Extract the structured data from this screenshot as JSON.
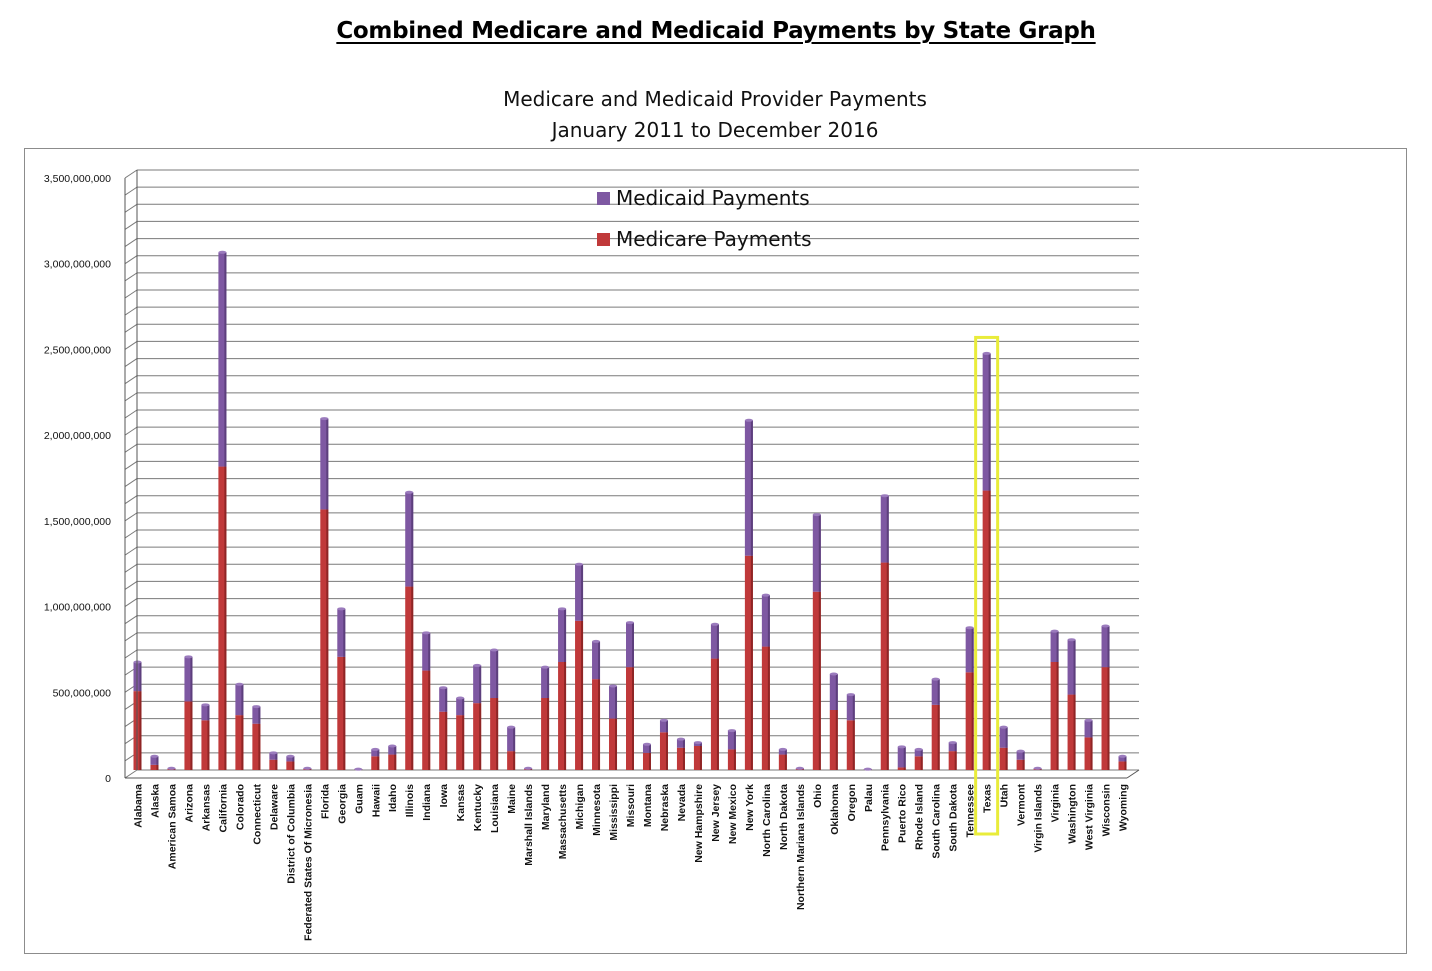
{
  "page": {
    "heading": "Combined Medicare and Medicaid Payments by State Graph"
  },
  "colors": {
    "medicare": "#c0393a",
    "medicaid": "#7e58a2",
    "highlight": "#e9ec3a",
    "gridline": "#7a7a7a"
  },
  "chart_data": {
    "type": "bar",
    "stacked": true,
    "title": "Medicare and Medicaid Provider Payments",
    "subtitle": "January 2011 to December 2016",
    "xlabel": "",
    "ylabel": "",
    "ylim": [
      0,
      3500000000
    ],
    "grid": true,
    "legend_position": "top-center",
    "yticks": [
      0,
      500000000,
      1000000000,
      1500000000,
      2000000000,
      2500000000,
      3000000000,
      3500000000
    ],
    "ytick_labels": [
      "0",
      "500,000,000",
      "1,000,000,000",
      "1,500,000,000",
      "2,000,000,000",
      "2,500,000,000",
      "3,000,000,000",
      "3,500,000,000"
    ],
    "highlighted_category": "Texas",
    "categories": [
      "Alabama",
      "Alaska",
      "American Samoa",
      "Arizona",
      "Arkansas",
      "California",
      "Colorado",
      "Connecticut",
      "Delaware",
      "District of Columbia",
      "Federated States Of Micronesia",
      "Florida",
      "Georgia",
      "Guam",
      "Hawaii",
      "Idaho",
      "Illinois",
      "Indiana",
      "Iowa",
      "Kansas",
      "Kentucky",
      "Louisiana",
      "Maine",
      "Marshall Islands",
      "Maryland",
      "Massachusetts",
      "Michigan",
      "Minnesota",
      "Mississippi",
      "Missouri",
      "Montana",
      "Nebraska",
      "Nevada",
      "New Hampshire",
      "New Jersey",
      "New Mexico",
      "New York",
      "North Carolina",
      "North Dakota",
      "Northern Mariana Islands",
      "Ohio",
      "Oklahoma",
      "Oregon",
      "Palau",
      "Pennsylvania",
      "Puerto Rico",
      "Rhode Island",
      "South Carolina",
      "South Dakota",
      "Tennessee",
      "Texas",
      "Utah",
      "Vermont",
      "Virgin Islands",
      "Virginia",
      "Washington",
      "West Virginia",
      "Wisconsin",
      "Wyoming"
    ],
    "series": [
      {
        "name": "Medicare Payments",
        "values": [
          460000000,
          30000000,
          5000000,
          400000000,
          290000000,
          1770000000,
          320000000,
          270000000,
          60000000,
          50000000,
          5000000,
          1520000000,
          660000000,
          3000000,
          80000000,
          90000000,
          1070000000,
          580000000,
          340000000,
          320000000,
          390000000,
          420000000,
          110000000,
          5000000,
          420000000,
          630000000,
          870000000,
          530000000,
          300000000,
          600000000,
          100000000,
          220000000,
          130000000,
          140000000,
          650000000,
          120000000,
          1250000000,
          720000000,
          90000000,
          5000000,
          1040000000,
          350000000,
          290000000,
          3000000,
          1210000000,
          15000000,
          80000000,
          380000000,
          110000000,
          570000000,
          1630000000,
          130000000,
          60000000,
          5000000,
          630000000,
          440000000,
          190000000,
          600000000,
          50000000
        ]
      },
      {
        "name": "Medicaid Payments",
        "values": [
          170000000,
          50000000,
          5000000,
          260000000,
          90000000,
          1250000000,
          180000000,
          100000000,
          40000000,
          30000000,
          5000000,
          530000000,
          280000000,
          2000000,
          40000000,
          50000000,
          550000000,
          220000000,
          140000000,
          100000000,
          220000000,
          280000000,
          140000000,
          5000000,
          180000000,
          310000000,
          330000000,
          220000000,
          190000000,
          260000000,
          50000000,
          70000000,
          50000000,
          20000000,
          200000000,
          110000000,
          790000000,
          300000000,
          30000000,
          5000000,
          450000000,
          210000000,
          150000000,
          2000000,
          390000000,
          120000000,
          40000000,
          150000000,
          50000000,
          260000000,
          800000000,
          120000000,
          50000000,
          5000000,
          180000000,
          320000000,
          100000000,
          240000000,
          30000000
        ]
      }
    ]
  }
}
